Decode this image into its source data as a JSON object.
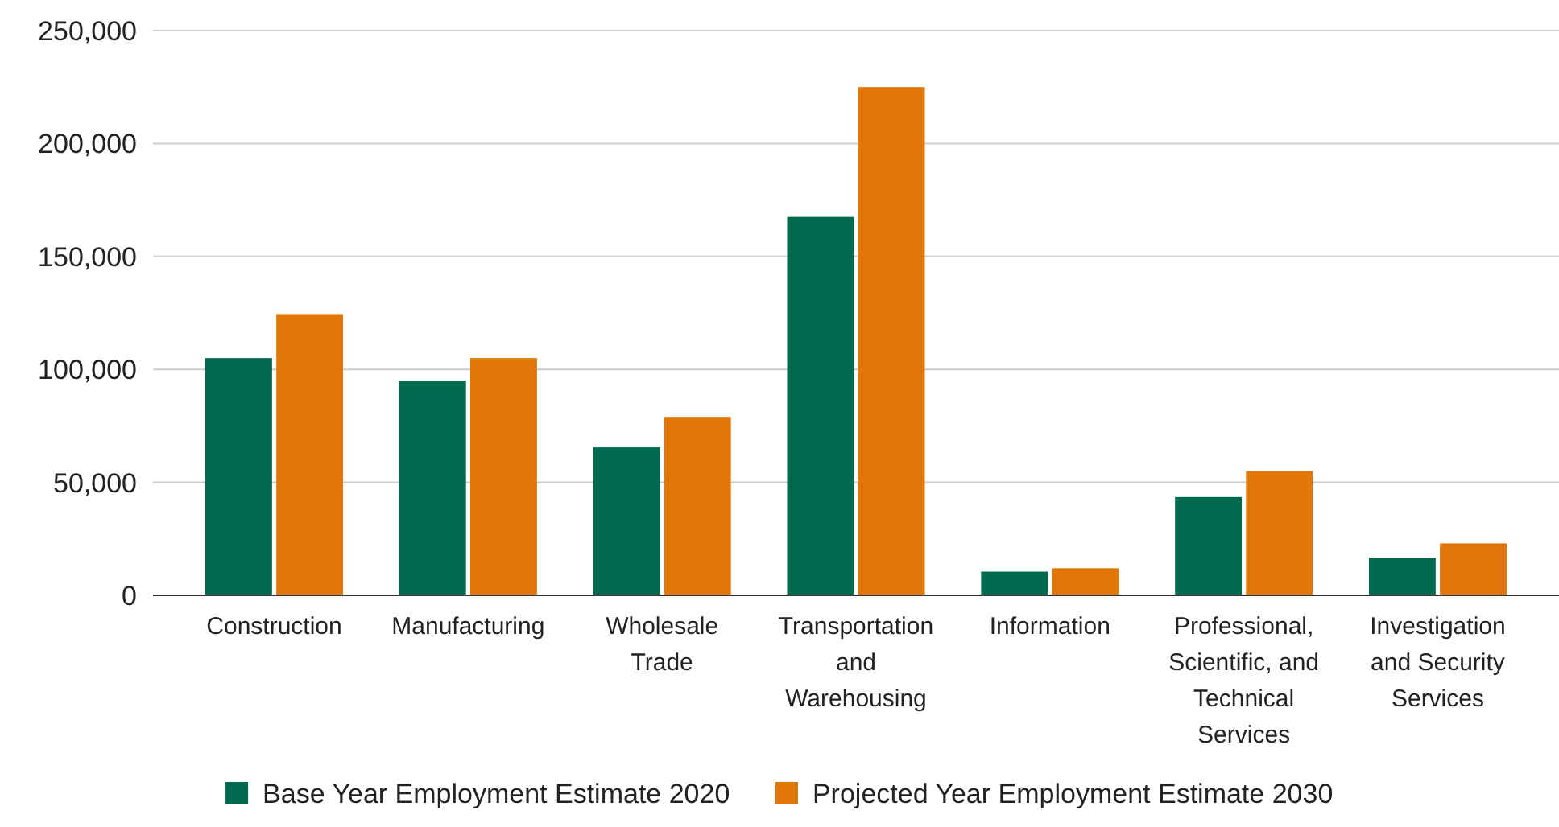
{
  "chart_data": {
    "type": "bar",
    "categories": [
      "Construction",
      "Manufacturing",
      "Wholesale Trade",
      "Transportation and Warehousing",
      "Information",
      "Professional, Scientific, and Technical Services",
      "Investigation and Security Services"
    ],
    "series": [
      {
        "name": "Base Year Employment Estimate 2020",
        "color": "#006a4e",
        "values": [
          105000,
          95000,
          65500,
          167500,
          10500,
          43500,
          16500
        ]
      },
      {
        "name": "Projected Year Employment Estimate 2030",
        "color": "#e07708",
        "values": [
          124500,
          105000,
          79000,
          225000,
          12000,
          55000,
          23000
        ]
      }
    ],
    "ylim": [
      0,
      250000
    ],
    "yticks": [
      {
        "value": 0,
        "label": "0"
      },
      {
        "value": 50000,
        "label": "50,000"
      },
      {
        "value": 100000,
        "label": "100,000"
      },
      {
        "value": 150000,
        "label": "150,000"
      },
      {
        "value": 200000,
        "label": "200,000"
      },
      {
        "value": 250000,
        "label": "250,000"
      }
    ],
    "grid": "y",
    "legend": "bottom"
  }
}
